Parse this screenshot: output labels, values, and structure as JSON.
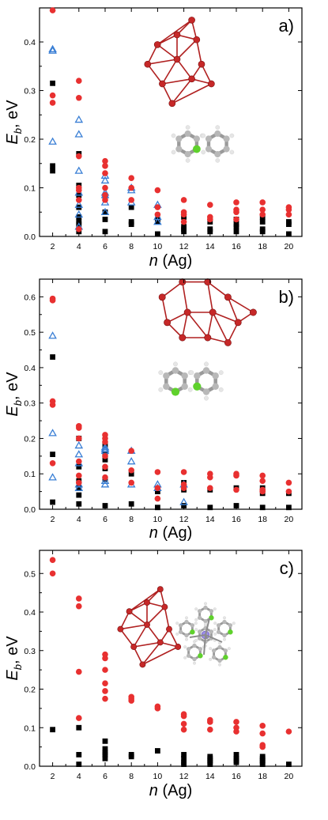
{
  "chart_data": [
    {
      "type": "scatter",
      "panel_label": "a)",
      "xlabel_var": "n",
      "xlabel_unit": " (Ag)",
      "ylabel_var": "E",
      "ylabel_sub": "b",
      "ylabel_unit": ", eV",
      "xlim": [
        1,
        21
      ],
      "ylim": [
        0,
        0.47
      ],
      "xticks": [
        2,
        4,
        6,
        8,
        10,
        12,
        14,
        16,
        18,
        20
      ],
      "yticks": [
        0.0,
        0.1,
        0.2,
        0.3,
        0.4
      ],
      "ytick_labels": [
        "0.0",
        "0.1",
        "0.2",
        "0.3",
        "0.4"
      ],
      "series": [
        {
          "marker": "square",
          "color": "#000000",
          "points": [
            [
              2,
              0.315
            ],
            [
              2,
              0.145
            ],
            [
              2,
              0.135
            ],
            [
              4,
              0.17
            ],
            [
              4,
              0.105
            ],
            [
              4,
              0.085
            ],
            [
              4,
              0.06
            ],
            [
              4,
              0.04
            ],
            [
              4,
              0.03
            ],
            [
              4,
              0.025
            ],
            [
              4,
              0.01
            ],
            [
              6,
              0.08
            ],
            [
              6,
              0.05
            ],
            [
              6,
              0.035
            ],
            [
              6,
              0.01
            ],
            [
              8,
              0.06
            ],
            [
              8,
              0.03
            ],
            [
              8,
              0.025
            ],
            [
              10,
              0.035
            ],
            [
              10,
              0.03
            ],
            [
              10,
              0.005
            ],
            [
              12,
              0.04
            ],
            [
              12,
              0.02
            ],
            [
              12,
              0.015
            ],
            [
              12,
              0.01
            ],
            [
              14,
              0.03
            ],
            [
              14,
              0.015
            ],
            [
              14,
              0.01
            ],
            [
              16,
              0.035
            ],
            [
              16,
              0.025
            ],
            [
              16,
              0.02
            ],
            [
              16,
              0.01
            ],
            [
              18,
              0.04
            ],
            [
              18,
              0.03
            ],
            [
              18,
              0.015
            ],
            [
              18,
              0.01
            ],
            [
              20,
              0.03
            ],
            [
              20,
              0.025
            ],
            [
              20,
              0.005
            ]
          ]
        },
        {
          "marker": "triangle-open",
          "color": "#3a7fd5",
          "points": [
            [
              2,
              0.385
            ],
            [
              2,
              0.382
            ],
            [
              2,
              0.195
            ],
            [
              4,
              0.24
            ],
            [
              4,
              0.21
            ],
            [
              4,
              0.135
            ],
            [
              4,
              0.09
            ],
            [
              4,
              0.065
            ],
            [
              4,
              0.045
            ],
            [
              4,
              0.02
            ],
            [
              6,
              0.125
            ],
            [
              6,
              0.115
            ],
            [
              6,
              0.09
            ],
            [
              6,
              0.085
            ],
            [
              6,
              0.07
            ],
            [
              6,
              0.05
            ],
            [
              8,
              0.1
            ],
            [
              8,
              0.095
            ],
            [
              8,
              0.07
            ],
            [
              10,
              0.065
            ],
            [
              10,
              0.04
            ],
            [
              10,
              0.03
            ]
          ]
        },
        {
          "marker": "circle",
          "color": "#e83030",
          "points": [
            [
              2,
              0.465
            ],
            [
              2,
              0.29
            ],
            [
              2,
              0.275
            ],
            [
              4,
              0.32
            ],
            [
              4,
              0.285
            ],
            [
              4,
              0.165
            ],
            [
              4,
              0.1
            ],
            [
              4,
              0.095
            ],
            [
              4,
              0.075
            ],
            [
              4,
              0.015
            ],
            [
              6,
              0.155
            ],
            [
              6,
              0.145
            ],
            [
              6,
              0.13
            ],
            [
              6,
              0.1
            ],
            [
              6,
              0.085
            ],
            [
              6,
              0.075
            ],
            [
              8,
              0.12
            ],
            [
              8,
              0.1
            ],
            [
              8,
              0.075
            ],
            [
              10,
              0.095
            ],
            [
              10,
              0.06
            ],
            [
              10,
              0.045
            ],
            [
              12,
              0.075
            ],
            [
              12,
              0.05
            ],
            [
              12,
              0.045
            ],
            [
              12,
              0.03
            ],
            [
              14,
              0.065
            ],
            [
              14,
              0.04
            ],
            [
              14,
              0.035
            ],
            [
              16,
              0.07
            ],
            [
              16,
              0.055
            ],
            [
              16,
              0.05
            ],
            [
              16,
              0.035
            ],
            [
              18,
              0.07
            ],
            [
              18,
              0.055
            ],
            [
              18,
              0.045
            ],
            [
              20,
              0.06
            ],
            [
              20,
              0.055
            ],
            [
              20,
              0.045
            ]
          ]
        }
      ]
    },
    {
      "type": "scatter",
      "panel_label": "b)",
      "xlabel_var": "n",
      "xlabel_unit": " (Ag)",
      "ylabel_var": "E",
      "ylabel_sub": "b",
      "ylabel_unit": ", eV",
      "xlim": [
        1,
        21
      ],
      "ylim": [
        0,
        0.65
      ],
      "xticks": [
        2,
        4,
        6,
        8,
        10,
        12,
        14,
        16,
        18,
        20
      ],
      "yticks": [
        0.0,
        0.1,
        0.2,
        0.3,
        0.4,
        0.5,
        0.6
      ],
      "ytick_labels": [
        "0.0",
        "0.1",
        "0.2",
        "0.3",
        "0.4",
        "0.5",
        "0.6"
      ],
      "series": [
        {
          "marker": "square",
          "color": "#000000",
          "points": [
            [
              2,
              0.43
            ],
            [
              2,
              0.155
            ],
            [
              2,
              0.02
            ],
            [
              4,
              0.2
            ],
            [
              4,
              0.12
            ],
            [
              4,
              0.08
            ],
            [
              4,
              0.06
            ],
            [
              4,
              0.04
            ],
            [
              4,
              0.015
            ],
            [
              6,
              0.18
            ],
            [
              6,
              0.155
            ],
            [
              6,
              0.14
            ],
            [
              6,
              0.115
            ],
            [
              6,
              0.085
            ],
            [
              6,
              0.01
            ],
            [
              8,
              0.1
            ],
            [
              8,
              0.015
            ],
            [
              10,
              0.05
            ],
            [
              10,
              0.005
            ],
            [
              12,
              0.075
            ],
            [
              12,
              0.055
            ],
            [
              12,
              0.01
            ],
            [
              14,
              0.055
            ],
            [
              14,
              0.005
            ],
            [
              16,
              0.06
            ],
            [
              16,
              0.01
            ],
            [
              18,
              0.06
            ],
            [
              18,
              0.045
            ],
            [
              18,
              0.005
            ],
            [
              20,
              0.045
            ],
            [
              20,
              0.005
            ]
          ]
        },
        {
          "marker": "triangle-open",
          "color": "#3a7fd5",
          "points": [
            [
              2,
              0.49
            ],
            [
              2,
              0.215
            ],
            [
              2,
              0.09
            ],
            [
              4,
              0.18
            ],
            [
              4,
              0.155
            ],
            [
              4,
              0.13
            ],
            [
              4,
              0.07
            ],
            [
              4,
              0.06
            ],
            [
              6,
              0.175
            ],
            [
              6,
              0.17
            ],
            [
              6,
              0.165
            ],
            [
              6,
              0.08
            ],
            [
              6,
              0.07
            ],
            [
              8,
              0.165
            ],
            [
              8,
              0.135
            ],
            [
              8,
              0.07
            ],
            [
              10,
              0.07
            ],
            [
              10,
              0.06
            ],
            [
              12,
              0.07
            ],
            [
              12,
              0.02
            ]
          ]
        },
        {
          "marker": "circle",
          "color": "#e83030",
          "points": [
            [
              2,
              0.595
            ],
            [
              2,
              0.59
            ],
            [
              2,
              0.305
            ],
            [
              2,
              0.295
            ],
            [
              2,
              0.13
            ],
            [
              4,
              0.235
            ],
            [
              4,
              0.23
            ],
            [
              4,
              0.2
            ],
            [
              4,
              0.135
            ],
            [
              4,
              0.095
            ],
            [
              4,
              0.075
            ],
            [
              6,
              0.21
            ],
            [
              6,
              0.2
            ],
            [
              6,
              0.19
            ],
            [
              6,
              0.15
            ],
            [
              6,
              0.12
            ],
            [
              6,
              0.09
            ],
            [
              8,
              0.165
            ],
            [
              8,
              0.11
            ],
            [
              8,
              0.075
            ],
            [
              10,
              0.105
            ],
            [
              10,
              0.06
            ],
            [
              10,
              0.03
            ],
            [
              12,
              0.105
            ],
            [
              12,
              0.07
            ],
            [
              12,
              0.06
            ],
            [
              14,
              0.1
            ],
            [
              14,
              0.09
            ],
            [
              14,
              0.06
            ],
            [
              16,
              0.1
            ],
            [
              16,
              0.095
            ],
            [
              16,
              0.055
            ],
            [
              18,
              0.095
            ],
            [
              18,
              0.08
            ],
            [
              18,
              0.055
            ],
            [
              18,
              0.05
            ],
            [
              20,
              0.075
            ],
            [
              20,
              0.05
            ]
          ]
        }
      ]
    },
    {
      "type": "scatter",
      "panel_label": "c)",
      "xlabel_var": "n",
      "xlabel_unit": " (Ag)",
      "ylabel_var": "E",
      "ylabel_sub": "b",
      "ylabel_unit": ", eV",
      "xlim": [
        1,
        21
      ],
      "ylim": [
        0,
        0.56
      ],
      "xticks": [
        2,
        4,
        6,
        8,
        10,
        12,
        14,
        16,
        18,
        20
      ],
      "yticks": [
        0.0,
        0.1,
        0.2,
        0.3,
        0.4,
        0.5
      ],
      "ytick_labels": [
        "0.0",
        "0.1",
        "0.2",
        "0.3",
        "0.4",
        "0.5"
      ],
      "series": [
        {
          "marker": "square",
          "color": "#000000",
          "points": [
            [
              2,
              0.095
            ],
            [
              4,
              0.1
            ],
            [
              4,
              0.03
            ],
            [
              4,
              0.005
            ],
            [
              6,
              0.065
            ],
            [
              6,
              0.045
            ],
            [
              6,
              0.035
            ],
            [
              6,
              0.03
            ],
            [
              6,
              0.02
            ],
            [
              8,
              0.03
            ],
            [
              8,
              0.025
            ],
            [
              10,
              0.04
            ],
            [
              12,
              0.03
            ],
            [
              12,
              0.02
            ],
            [
              12,
              0.01
            ],
            [
              12,
              0.005
            ],
            [
              14,
              0.025
            ],
            [
              14,
              0.02
            ],
            [
              14,
              0.015
            ],
            [
              14,
              0.01
            ],
            [
              14,
              0.005
            ],
            [
              16,
              0.03
            ],
            [
              16,
              0.02
            ],
            [
              16,
              0.015
            ],
            [
              16,
              0.01
            ],
            [
              18,
              0.025
            ],
            [
              18,
              0.02
            ],
            [
              18,
              0.015
            ],
            [
              18,
              0.01
            ],
            [
              18,
              0.005
            ],
            [
              20,
              0.005
            ]
          ]
        },
        {
          "marker": "circle",
          "color": "#e83030",
          "points": [
            [
              2,
              0.535
            ],
            [
              2,
              0.5
            ],
            [
              4,
              0.435
            ],
            [
              4,
              0.415
            ],
            [
              4,
              0.245
            ],
            [
              4,
              0.125
            ],
            [
              6,
              0.29
            ],
            [
              6,
              0.28
            ],
            [
              6,
              0.25
            ],
            [
              6,
              0.215
            ],
            [
              6,
              0.195
            ],
            [
              6,
              0.175
            ],
            [
              8,
              0.18
            ],
            [
              8,
              0.175
            ],
            [
              8,
              0.17
            ],
            [
              10,
              0.155
            ],
            [
              10,
              0.15
            ],
            [
              12,
              0.135
            ],
            [
              12,
              0.13
            ],
            [
              12,
              0.11
            ],
            [
              12,
              0.095
            ],
            [
              14,
              0.12
            ],
            [
              14,
              0.115
            ],
            [
              14,
              0.095
            ],
            [
              16,
              0.115
            ],
            [
              16,
              0.1
            ],
            [
              16,
              0.09
            ],
            [
              18,
              0.105
            ],
            [
              18,
              0.085
            ],
            [
              18,
              0.055
            ],
            [
              18,
              0.05
            ],
            [
              20,
              0.09
            ]
          ]
        }
      ]
    }
  ]
}
